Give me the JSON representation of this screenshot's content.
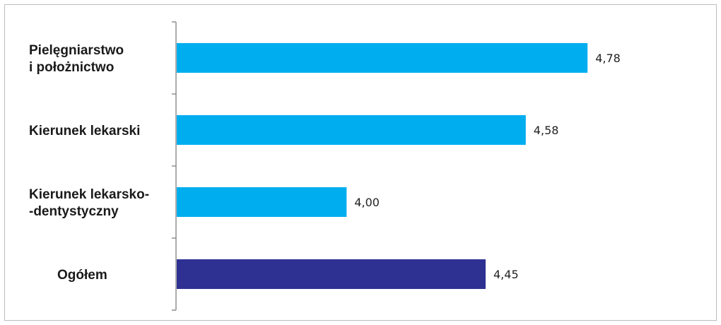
{
  "chart_data": {
    "type": "bar",
    "orientation": "horizontal",
    "categories": [
      [
        "Pielęgniarstwo",
        "i położnictwo"
      ],
      [
        "Kierunek lekarski"
      ],
      [
        "Kierunek lekarsko-",
        "-dentystyczny"
      ],
      [
        "Ogółem"
      ]
    ],
    "values": [
      4.78,
      4.58,
      4.0,
      4.45
    ],
    "value_labels": [
      "4,78",
      "4,58",
      "4,00",
      "4,45"
    ],
    "bar_colors": [
      "#00aeef",
      "#00aeef",
      "#00aeef",
      "#2e3192"
    ],
    "xlim": [
      3.45,
      5.0
    ],
    "title": "",
    "xlabel": "",
    "ylabel": "",
    "grid": false,
    "legend": "none"
  },
  "colors": {
    "axis": "#7f7f7f",
    "frame": "#bdbdbd",
    "primary_bar": "#00aeef",
    "total_bar": "#2e3192"
  }
}
